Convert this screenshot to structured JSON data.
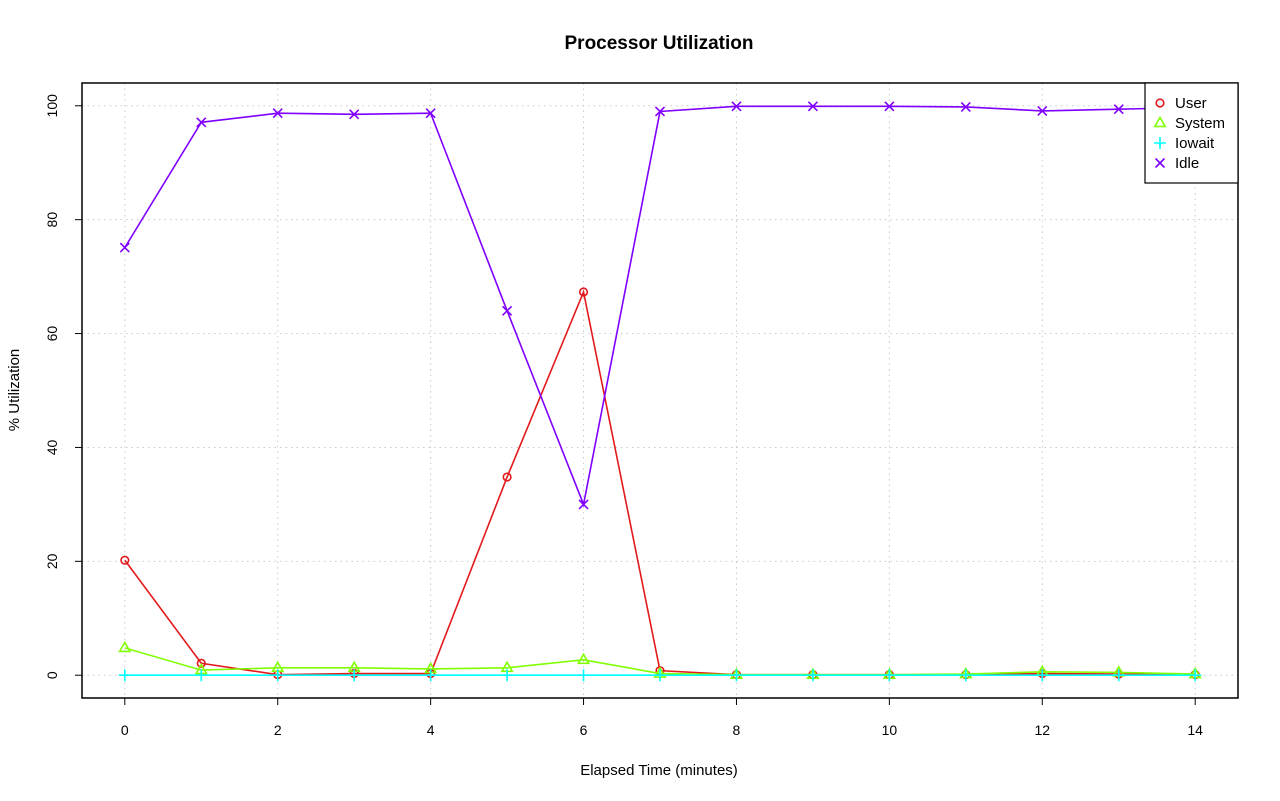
{
  "chart_data": {
    "type": "line",
    "title": "Processor Utilization",
    "xlabel": "Elapsed Time (minutes)",
    "ylabel": "% Utilization",
    "xlim": [
      -0.56,
      14.56
    ],
    "ylim": [
      -4,
      104
    ],
    "x_ticks": [
      0,
      2,
      4,
      6,
      8,
      10,
      12,
      14
    ],
    "y_ticks": [
      0,
      20,
      40,
      60,
      80,
      100
    ],
    "grid": true,
    "legend_position": "top-right",
    "x": [
      0,
      1,
      2,
      3,
      4,
      5,
      6,
      7,
      8,
      9,
      10,
      11,
      12,
      13,
      14
    ],
    "series": [
      {
        "name": "User",
        "color": "#e31a1c",
        "marker": "circle",
        "values": [
          20.2,
          2.1,
          0.1,
          0.3,
          0.3,
          34.8,
          67.3,
          0.8,
          0.1,
          0.1,
          0.1,
          0.1,
          0.3,
          0.2,
          0.1
        ]
      },
      {
        "name": "System",
        "color": "#80ff00",
        "marker": "triangle",
        "values": [
          4.8,
          0.9,
          1.3,
          1.3,
          1.1,
          1.3,
          2.7,
          0.3,
          0.1,
          0.1,
          0.1,
          0.2,
          0.6,
          0.5,
          0.2
        ]
      },
      {
        "name": "Iowait",
        "color": "#00ffff",
        "marker": "plus",
        "values": [
          0,
          0,
          0,
          0,
          0,
          0,
          0,
          0,
          0,
          0,
          0,
          0,
          0,
          0,
          0
        ]
      },
      {
        "name": "Idle",
        "color": "#8000ff",
        "marker": "cross",
        "values": [
          75.1,
          97.1,
          98.7,
          98.5,
          98.7,
          64.0,
          30.0,
          99.0,
          99.9,
          99.9,
          99.9,
          99.8,
          99.1,
          99.4,
          99.7
        ]
      }
    ]
  }
}
